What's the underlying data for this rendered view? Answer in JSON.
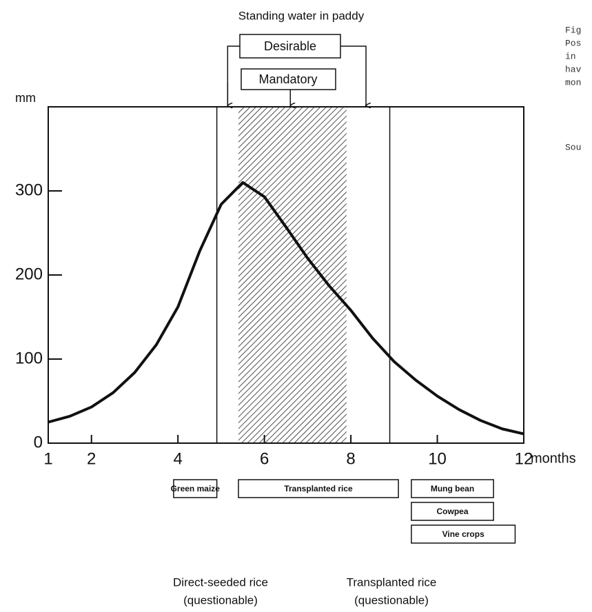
{
  "chart_data": {
    "type": "line",
    "title": "Standing water in paddy",
    "y_label": "mm",
    "x_label": "months",
    "x": [
      1,
      1.5,
      2,
      2.5,
      3,
      3.5,
      4,
      4.5,
      5,
      5.5,
      6,
      6.5,
      7,
      7.5,
      8,
      8.5,
      9,
      9.5,
      10,
      10.5,
      11,
      11.5,
      12
    ],
    "values": [
      25,
      32,
      43,
      60,
      84,
      117,
      162,
      228,
      284,
      310,
      293,
      257,
      220,
      187,
      158,
      125,
      97,
      75,
      56,
      40,
      27,
      17,
      11
    ],
    "color": "#111111",
    "xlim": [
      1,
      12
    ],
    "ylim": [
      0,
      400
    ],
    "xticks": [
      1,
      2,
      4,
      6,
      8,
      10,
      12
    ],
    "yticks": [
      0,
      100,
      200,
      300
    ],
    "vlines": [
      4.9,
      8.9
    ],
    "shaded_range": [
      5.4,
      7.9
    ],
    "annotations": {
      "desirable": {
        "label": "Desirable",
        "range": [
          5.15,
          8.35
        ]
      },
      "mandatory": {
        "label": "Mandatory",
        "at": 6.6
      }
    },
    "crops": [
      {
        "label": "Green maize",
        "range": [
          3.9,
          4.9
        ],
        "row": 0
      },
      {
        "label": "Transplanted rice",
        "range": [
          5.4,
          9.1
        ],
        "row": 0
      },
      {
        "label": "Mung bean",
        "range": [
          9.4,
          11.3
        ],
        "row": 0
      },
      {
        "label": "Cowpea",
        "range": [
          9.4,
          11.3
        ],
        "row": 1
      },
      {
        "label": "Vine crops",
        "range": [
          9.4,
          11.8
        ],
        "row": 2
      }
    ],
    "notes": [
      {
        "line1": "Direct-seeded rice",
        "line2": "(questionable)"
      },
      {
        "line1": "Transplanted rice",
        "line2": "(questionable)"
      }
    ],
    "side_text": [
      "Fig",
      "Pos",
      "in",
      "hav",
      "mon",
      "Sou"
    ]
  }
}
